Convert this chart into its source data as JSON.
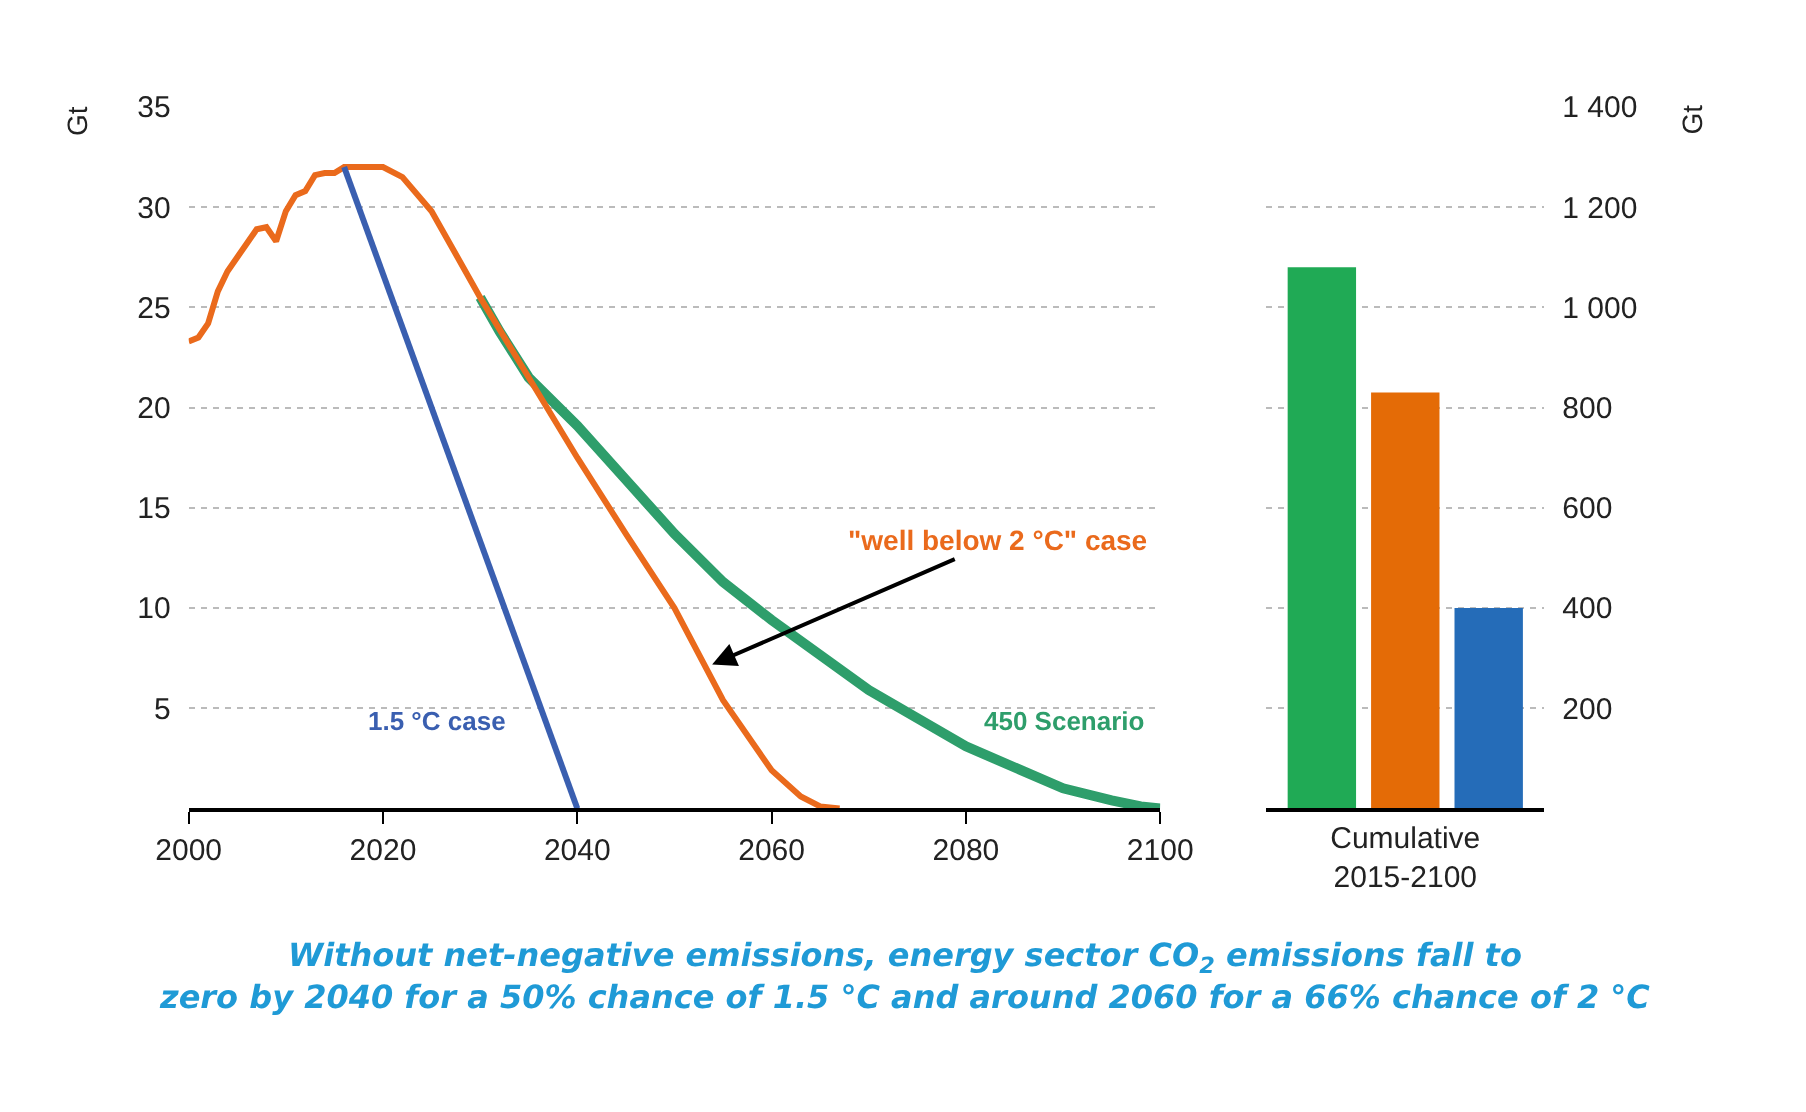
{
  "chart_data": [
    {
      "type": "line",
      "ylabel": "Gt",
      "xlim": [
        2000,
        2100
      ],
      "xticks": [
        2000,
        2020,
        2040,
        2060,
        2080,
        2100
      ],
      "ylim": [
        0,
        35
      ],
      "yticks": [
        5,
        10,
        15,
        20,
        25,
        30,
        35
      ],
      "grid": "y",
      "series": [
        {
          "name": "450 Scenario",
          "color": "#2e9e6b",
          "x": [
            2030,
            2032,
            2035,
            2040,
            2045,
            2050,
            2055,
            2060,
            2070,
            2080,
            2090,
            2095,
            2098,
            2100
          ],
          "values": [
            25.5,
            23.8,
            21.5,
            19.1,
            16.4,
            13.7,
            11.3,
            9.4,
            5.9,
            3.1,
            1.0,
            0.4,
            0.1,
            0
          ]
        },
        {
          "color": "#ea6a1c",
          "x": [
            2000,
            2001,
            2002,
            2003,
            2004,
            2005,
            2006,
            2007,
            2008,
            2009,
            2010,
            2011,
            2012,
            2013,
            2014,
            2015,
            2016,
            2018,
            2020,
            2022,
            2025,
            2030,
            2035,
            2040,
            2045,
            2050,
            2055,
            2060,
            2063,
            2065,
            2067
          ],
          "values": [
            23.3,
            23.5,
            24.2,
            25.8,
            26.8,
            27.5,
            28.2,
            28.9,
            29.0,
            28.3,
            29.8,
            30.6,
            30.8,
            31.6,
            31.7,
            31.7,
            32.0,
            32.0,
            32.0,
            31.5,
            29.8,
            25.5,
            21.5,
            17.5,
            13.7,
            10.0,
            5.4,
            1.9,
            0.6,
            0.1,
            0
          ]
        },
        {
          "name": "1.5 °C case",
          "color": "#3a5fb0",
          "x": [
            2016,
            2040
          ],
          "values": [
            32.0,
            0
          ]
        }
      ],
      "annotations": [
        {
          "text": "\"well below 2 °C\" case",
          "x": 2053.5,
          "y": 7.1
        },
        "Without net-negative emissions, energy sector CO$_{2}$ emissions fall to zero by 2040 for a 50% chance of 1.5 °C and around 2060 for a 66% chance of 2 °C"
      ]
    },
    {
      "type": "bar",
      "ylabel": "Gt",
      "categories": [
        "Cumulative 2015-2100"
      ],
      "ylim": [
        0,
        1400
      ],
      "yticks": [
        {
          "value": 200,
          "label": "200"
        },
        {
          "value": 400,
          "label": "400"
        },
        {
          "value": 600,
          "label": "600"
        },
        {
          "value": 800,
          "label": "800"
        },
        {
          "value": 1000,
          "label": "1 000"
        },
        {
          "value": 1200,
          "label": "1 200"
        },
        {
          "value": 1400,
          "label": "1 400"
        }
      ],
      "grid": "y",
      "series": [
        {
          "color": "#20aa55",
          "values": [
            1080
          ]
        },
        {
          "color": "#e46b06",
          "values": [
            830
          ]
        },
        {
          "color": "#256cb8",
          "values": [
            400
          ]
        }
      ]
    }
  ]
}
